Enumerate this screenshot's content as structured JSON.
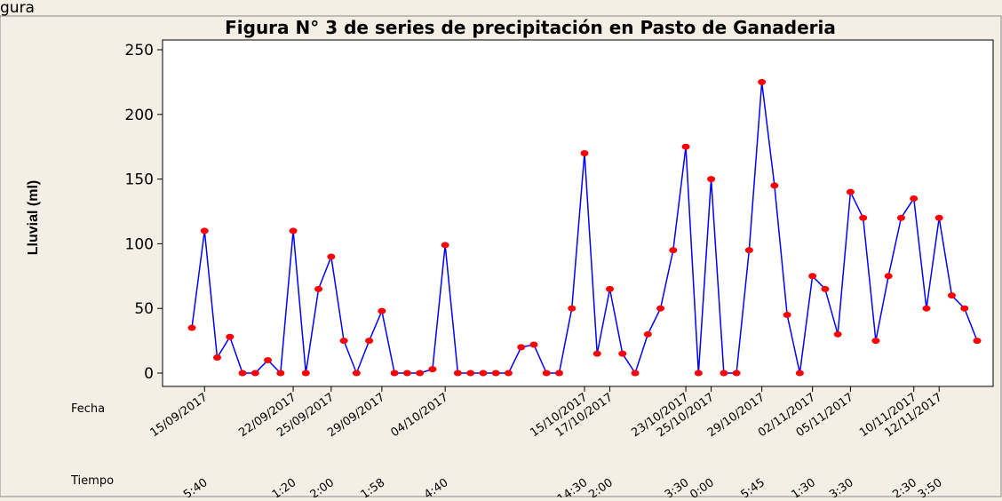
{
  "chart_data": {
    "type": "line",
    "corner_text": "gura",
    "title": "Figura N° 3 de series de precipitación en Pasto de Ganaderia",
    "y_label": "Lluvial (ml)",
    "x_row_labels": [
      "Fecha",
      "Tiempo"
    ],
    "categories": [
      null,
      "15/09/2017",
      null,
      null,
      null,
      null,
      null,
      null,
      "22/09/2017",
      null,
      null,
      "25/09/2017",
      null,
      null,
      null,
      "29/09/2017",
      null,
      null,
      null,
      null,
      "04/10/2017",
      null,
      null,
      null,
      null,
      null,
      null,
      null,
      null,
      null,
      null,
      "15/10/2017",
      null,
      "17/10/2017",
      null,
      null,
      null,
      null,
      null,
      "23/10/2017",
      null,
      "25/10/2017",
      null,
      null,
      null,
      "29/10/2017",
      null,
      null,
      null,
      "02/11/2017",
      null,
      null,
      "05/11/2017",
      null,
      null,
      null,
      null,
      "10/11/2017",
      null,
      "12/11/2017",
      null,
      null,
      null
    ],
    "times": [
      null,
      "5:40",
      null,
      null,
      null,
      null,
      null,
      null,
      "1:20",
      null,
      null,
      "2:00",
      null,
      null,
      null,
      "1:58",
      null,
      null,
      null,
      null,
      "4:40",
      null,
      null,
      null,
      null,
      null,
      null,
      null,
      null,
      null,
      null,
      "14:30",
      null,
      "2:00",
      null,
      null,
      null,
      null,
      null,
      "3:30",
      null,
      "0:00",
      null,
      null,
      null,
      "5:45",
      null,
      null,
      null,
      "1:30",
      null,
      null,
      "3:30",
      null,
      null,
      null,
      null,
      "2:30",
      null,
      "3:50",
      null,
      null,
      null
    ],
    "series": [
      {
        "name": "Lluvial (ml)",
        "color": "#0000ff",
        "marker_color": "#ff0000",
        "values": [
          35,
          110,
          12,
          28,
          0,
          0,
          10,
          0,
          110,
          0,
          65,
          90,
          25,
          0,
          25,
          48,
          0,
          0,
          0,
          3,
          99,
          0,
          0,
          0,
          0,
          0,
          20,
          22,
          0,
          0,
          50,
          170,
          15,
          65,
          15,
          0,
          30,
          50,
          95,
          175,
          0,
          150,
          0,
          0,
          95,
          225,
          145,
          45,
          0,
          75,
          65,
          30,
          140,
          120,
          25,
          75,
          120,
          135,
          50,
          120,
          60,
          50,
          25
        ]
      }
    ],
    "ylim": [
      0,
      250
    ],
    "yticks": [
      0,
      50,
      100,
      150,
      200,
      250
    ]
  }
}
